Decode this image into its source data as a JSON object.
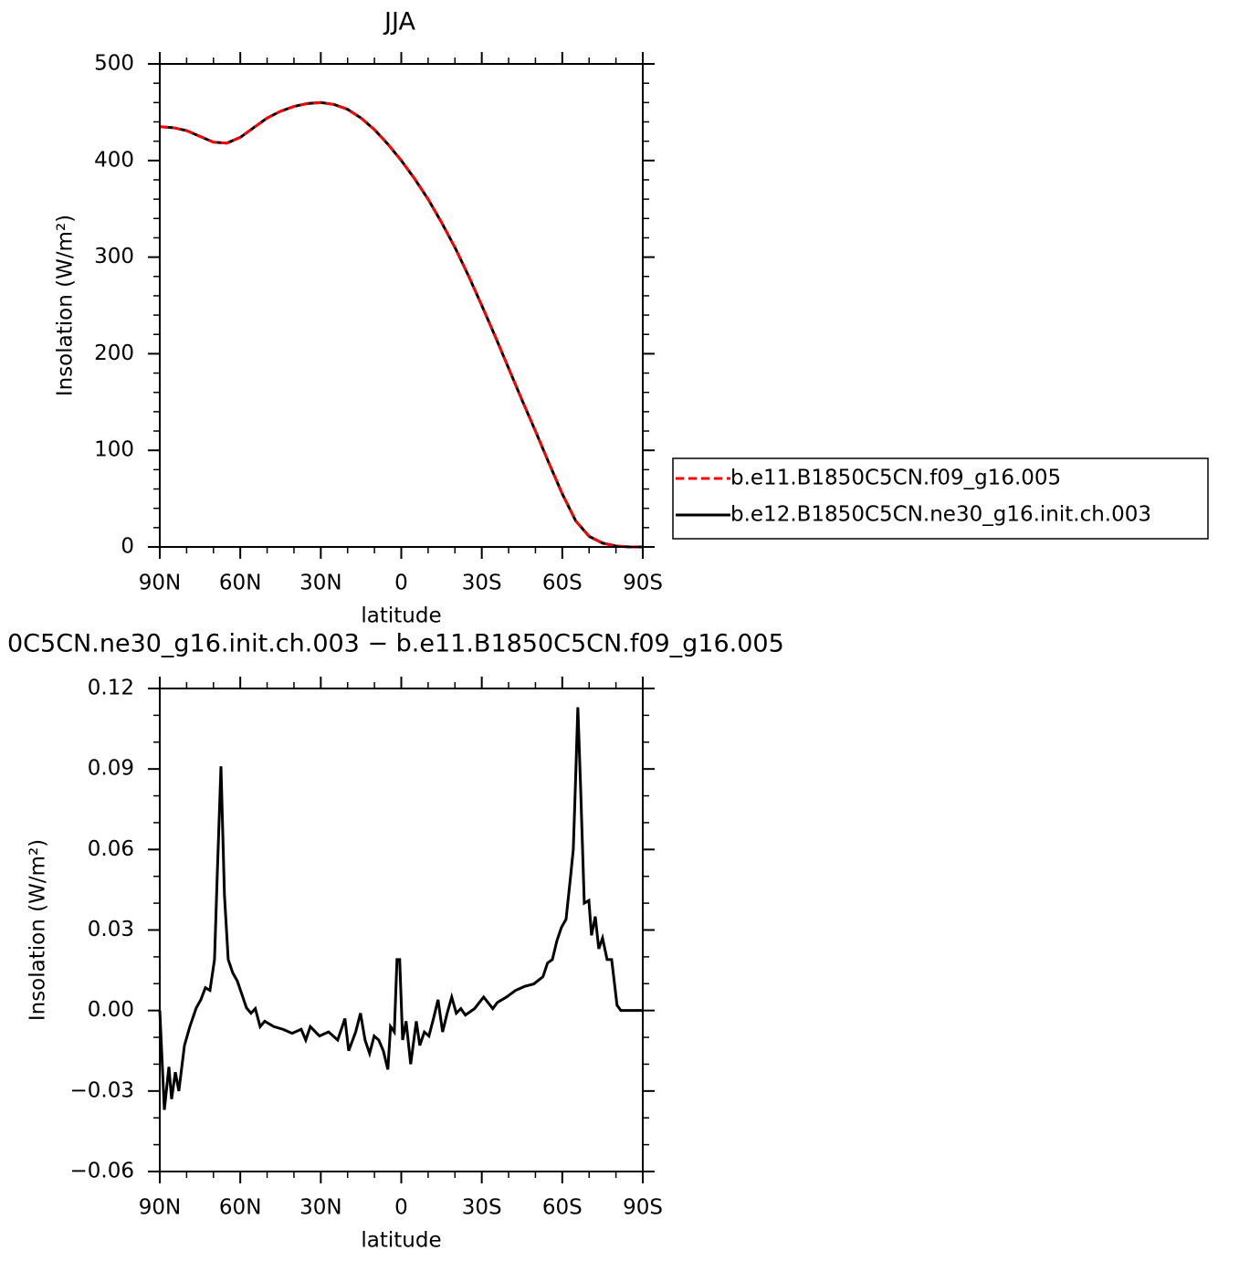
{
  "chart_data": [
    {
      "type": "line",
      "title": "JJA",
      "xlabel": "latitude",
      "ylabel": "Insolation  (W/m²)",
      "x": [
        90,
        85,
        80,
        75,
        70,
        65,
        60,
        55,
        50,
        45,
        40,
        35,
        30,
        25,
        20,
        15,
        10,
        5,
        0,
        -5,
        -10,
        -15,
        -20,
        -25,
        -30,
        -35,
        -40,
        -45,
        -50,
        -55,
        -60,
        -65,
        -70,
        -75,
        -80,
        -85,
        -90
      ],
      "series": [
        {
          "name": "b.e11.B1850C5CN.f09_g16.005",
          "color": "#ff0000",
          "dash": true,
          "values": [
            435,
            434,
            431,
            425,
            419,
            418,
            424,
            434,
            444,
            451,
            456,
            459,
            460,
            458,
            453,
            444,
            432,
            417,
            400,
            381,
            360,
            336,
            310,
            281,
            250,
            218,
            185,
            152,
            120,
            87,
            55,
            27,
            11,
            4,
            1,
            0,
            0
          ]
        },
        {
          "name": "b.e12.B1850C5CN.ne30_g16.init.ch.003",
          "color": "#000000",
          "dash": false,
          "values": [
            435,
            434,
            431,
            425,
            419,
            418,
            424,
            434,
            444,
            451,
            456,
            459,
            460,
            458,
            453,
            444,
            432,
            417,
            400,
            381,
            360,
            336,
            310,
            281,
            250,
            218,
            185,
            152,
            120,
            87,
            55,
            27,
            11,
            4,
            1,
            0,
            0
          ]
        }
      ],
      "xlim": [
        90,
        -90
      ],
      "xticks": [
        {
          "value": 90,
          "label": "90N"
        },
        {
          "value": 60,
          "label": "60N"
        },
        {
          "value": 30,
          "label": "30N"
        },
        0,
        {
          "value": -30,
          "label": "30S"
        },
        {
          "value": -60,
          "label": "60S"
        },
        {
          "value": -90,
          "label": "90S"
        }
      ],
      "xminorticks": [
        80,
        70,
        50,
        40,
        20,
        10,
        -10,
        -20,
        -40,
        -50,
        -70,
        -80
      ],
      "ylim": [
        0,
        500
      ],
      "yticks": [
        0,
        100,
        200,
        300,
        400,
        500
      ],
      "yminorticks": [
        20,
        40,
        60,
        80,
        120,
        140,
        160,
        180,
        220,
        240,
        260,
        280,
        320,
        340,
        360,
        380,
        420,
        440,
        460,
        480
      ],
      "legend": "outside-right"
    },
    {
      "type": "line",
      "title": "0C5CN.ne30_g16.init.ch.003 − b.e11.B1850C5CN.f09_g16.005",
      "xlabel": "latitude",
      "ylabel": "Insolation  (W/m²)",
      "x": [
        90,
        88.3,
        86.6,
        85.6,
        84.2,
        82.9,
        80.8,
        78.8,
        76.4,
        74.7,
        73,
        71.3,
        69.6,
        68.6,
        67.2,
        65.9,
        64.5,
        62.8,
        61.1,
        59.4,
        57.7,
        56,
        54.4,
        52.6,
        50.9,
        47.5,
        44.1,
        40.7,
        37.3,
        35.6,
        33.9,
        30.5,
        27.1,
        23.7,
        21,
        19.6,
        17,
        15.2,
        13.5,
        11.8,
        10.1,
        8.4,
        6.7,
        5,
        4,
        2.6,
        1.6,
        0.6,
        -0.5,
        -1.8,
        -3.5,
        -5.6,
        -6.9,
        -8.6,
        -10.3,
        -12,
        -13.7,
        -15.4,
        -17.1,
        -18.8,
        -20.5,
        -22.2,
        -23.9,
        -27.3,
        -30.7,
        -34.1,
        -35.8,
        -39.2,
        -42.6,
        -46,
        -49.4,
        -52.8,
        -54.5,
        -56.3,
        -58,
        -59.7,
        -61.4,
        -63.1,
        -64.1,
        -64.8,
        -65.8,
        -66.8,
        -68.2,
        -69.9,
        -70.9,
        -72.3,
        -73.6,
        -75,
        -76.7,
        -78.4,
        -80.4,
        -81.8,
        -90
      ],
      "series": [
        {
          "color": "#000000",
          "values": [
            0,
            -0.037,
            -0.021,
            -0.033,
            -0.023,
            -0.03,
            -0.013,
            -0.006,
            0.001,
            0.004,
            0.0085,
            0.0075,
            0.019,
            0.05,
            0.091,
            0.043,
            0.019,
            0.014,
            0.011,
            0.006,
            0.001,
            -0.001,
            0.0007,
            -0.006,
            -0.004,
            -0.006,
            -0.007,
            -0.0085,
            -0.007,
            -0.011,
            -0.006,
            -0.0095,
            -0.008,
            -0.011,
            -0.003,
            -0.015,
            -0.008,
            -0.001,
            -0.011,
            -0.016,
            -0.0095,
            -0.011,
            -0.015,
            -0.022,
            -0.006,
            -0.008,
            0.019,
            0.019,
            -0.011,
            -0.004,
            -0.02,
            -0.004,
            -0.013,
            -0.008,
            -0.0095,
            -0.003,
            0.004,
            -0.008,
            -0.001,
            0.005,
            -0.001,
            0.0007,
            -0.0017,
            0.0007,
            0.005,
            0.0007,
            0.003,
            0.005,
            0.0075,
            0.009,
            0.0099,
            0.0126,
            0.0177,
            0.019,
            0.026,
            0.031,
            0.034,
            0.05,
            0.06,
            0.081,
            0.113,
            0.084,
            0.04,
            0.041,
            0.028,
            0.035,
            0.023,
            0.027,
            0.019,
            0.019,
            0.002,
            0,
            0
          ]
        }
      ],
      "xlim": [
        90,
        -90
      ],
      "xticks": [
        {
          "value": 90,
          "label": "90N"
        },
        {
          "value": 60,
          "label": "60N"
        },
        {
          "value": 30,
          "label": "30N"
        },
        0,
        {
          "value": -30,
          "label": "30S"
        },
        {
          "value": -60,
          "label": "60S"
        },
        {
          "value": -90,
          "label": "90S"
        }
      ],
      "xminorticks": [
        80,
        70,
        50,
        40,
        20,
        10,
        -10,
        -20,
        -40,
        -50,
        -70,
        -80
      ],
      "ylim": [
        -0.06,
        0.12
      ],
      "yticks": [
        0.12,
        0.09,
        0.06,
        0.03,
        {
          "value": 0,
          "label": "0.00"
        },
        {
          "value": -0.03,
          "label": "−0.03"
        },
        {
          "value": -0.06,
          "label": "−0.06"
        }
      ],
      "yminorticks": [
        0.11,
        0.1,
        0.08,
        0.07,
        0.05,
        0.04,
        0.02,
        0.01,
        -0.01,
        -0.02,
        -0.04,
        -0.05
      ]
    }
  ]
}
